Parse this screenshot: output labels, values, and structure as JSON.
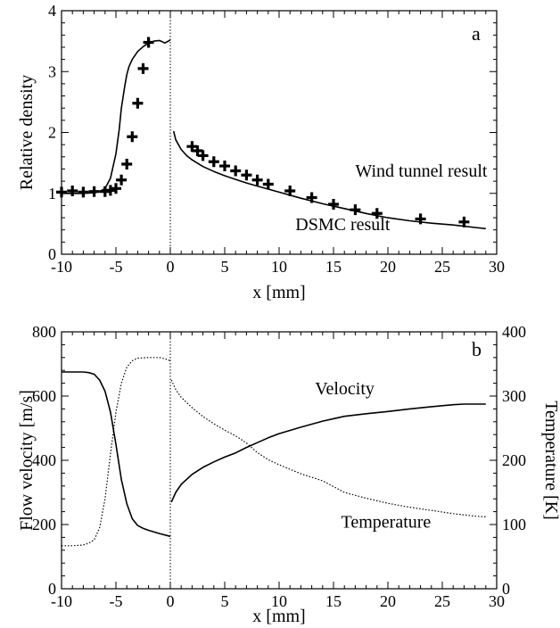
{
  "chart_data": [
    {
      "panel": "a",
      "type": "line",
      "xlabel": "x [mm]",
      "ylabel": "Relative density",
      "xlim": [
        -10,
        30
      ],
      "ylim": [
        0,
        4
      ],
      "xticks": [
        -10,
        -5,
        0,
        5,
        10,
        15,
        20,
        25,
        30
      ],
      "yticks": [
        0,
        1,
        2,
        3,
        4
      ],
      "grid": false,
      "reference_line_x": 0,
      "annotations": [
        {
          "text": "a",
          "x": 27.7,
          "y": 3.62
        },
        {
          "text": "Wind tunnel result",
          "x": 17.0,
          "y": 1.38
        },
        {
          "text": "DSMC result",
          "x": 11.5,
          "y": 0.5
        }
      ],
      "series": [
        {
          "name": "DSMC result",
          "style": "solid-line",
          "segments": [
            {
              "x": [
                -10,
                -9,
                -8,
                -7,
                -6.5,
                -6,
                -5.5,
                -5,
                -4.7,
                -4.5,
                -4.2,
                -4,
                -3.8,
                -3.5,
                -3,
                -2.5,
                -2,
                -1.5,
                -1,
                -0.5,
                0
              ],
              "y": [
                1.0,
                1.0,
                1.0,
                1.01,
                1.03,
                1.08,
                1.25,
                1.65,
                2.05,
                2.4,
                2.75,
                2.95,
                3.08,
                3.2,
                3.33,
                3.41,
                3.47,
                3.5,
                3.51,
                3.47,
                3.52
              ]
            },
            {
              "x": [
                0.3,
                0.5,
                1,
                1.5,
                2,
                3,
                4,
                5,
                6,
                7,
                8,
                9,
                10,
                12,
                14,
                16,
                18,
                20,
                22,
                24,
                26,
                28,
                29
              ],
              "y": [
                2.02,
                1.88,
                1.72,
                1.62,
                1.55,
                1.44,
                1.36,
                1.29,
                1.23,
                1.17,
                1.12,
                1.07,
                1.02,
                0.92,
                0.83,
                0.75,
                0.67,
                0.6,
                0.55,
                0.51,
                0.48,
                0.44,
                0.42
              ]
            }
          ]
        },
        {
          "name": "Wind tunnel result",
          "style": "plus-markers",
          "x": [
            -10,
            -9,
            -8,
            -7,
            -6,
            -5.5,
            -5,
            -4.5,
            -4,
            -3.5,
            -3,
            -2.5,
            -2,
            2,
            2.5,
            3,
            4,
            5,
            6,
            7,
            8,
            9,
            11,
            13,
            15,
            17,
            19,
            23,
            27
          ],
          "y": [
            1.02,
            1.04,
            1.02,
            1.03,
            1.03,
            1.05,
            1.08,
            1.22,
            1.48,
            1.93,
            2.48,
            3.05,
            3.48,
            1.77,
            1.7,
            1.62,
            1.52,
            1.45,
            1.37,
            1.3,
            1.22,
            1.15,
            1.04,
            0.93,
            0.82,
            0.73,
            0.67,
            0.58,
            0.53
          ]
        }
      ]
    },
    {
      "panel": "b",
      "type": "line",
      "xlabel": "x [mm]",
      "ylabel": "Flow velocity  [m/s]",
      "y2label": "Temperature  [K]",
      "xlim": [
        -10,
        30
      ],
      "ylim": [
        0,
        800
      ],
      "y2lim": [
        0,
        400
      ],
      "xticks": [
        -10,
        -5,
        0,
        5,
        10,
        15,
        20,
        25,
        30
      ],
      "yticks": [
        0,
        200,
        400,
        600,
        800
      ],
      "y2ticks": [
        0,
        100,
        200,
        300,
        400
      ],
      "grid": false,
      "reference_line_x": 0,
      "annotations": [
        {
          "text": "b",
          "x": 27.7,
          "y": 745
        },
        {
          "text": "Velocity",
          "x": 13.3,
          "y": 625
        },
        {
          "text": "Temperature",
          "x": 15.7,
          "y": 210
        }
      ],
      "series": [
        {
          "name": "Velocity",
          "axis": "left",
          "style": "solid-line",
          "segments": [
            {
              "x": [
                -10,
                -9,
                -8,
                -7.5,
                -7,
                -6.5,
                -6,
                -5.5,
                -5,
                -4.5,
                -4,
                -3.5,
                -3,
                -2.5,
                -2,
                -1,
                0
              ],
              "y": [
                675,
                675,
                675,
                673,
                668,
                650,
                615,
                550,
                450,
                340,
                265,
                218,
                197,
                188,
                182,
                172,
                163
              ]
            },
            {
              "x": [
                0.1,
                0.5,
                1,
                2,
                3,
                4,
                5,
                6,
                7,
                8,
                9,
                10,
                12,
                14,
                16,
                18,
                20,
                22,
                24,
                26,
                27,
                29
              ],
              "y": [
                270,
                300,
                325,
                356,
                378,
                395,
                410,
                423,
                440,
                455,
                470,
                483,
                503,
                522,
                537,
                545,
                552,
                560,
                567,
                573,
                575,
                575
              ]
            }
          ]
        },
        {
          "name": "Temperature",
          "axis": "right",
          "style": "dotted-line",
          "segments": [
            {
              "x": [
                -10,
                -9,
                -8,
                -7.5,
                -7,
                -6.5,
                -6,
                -5.5,
                -5,
                -4.5,
                -4,
                -3.5,
                -3,
                -2,
                -1,
                -0.5,
                0
              ],
              "y": [
                67,
                67,
                68,
                71,
                76,
                95,
                140,
                210,
                275,
                320,
                345,
                355,
                359,
                360,
                360,
                358,
                355
              ]
            },
            {
              "x": [
                0.1,
                0.5,
                1,
                2,
                3,
                4,
                5,
                6,
                7,
                8,
                9,
                10,
                12,
                14,
                16,
                18,
                20,
                22,
                24,
                26,
                28,
                29
              ],
              "y": [
                325,
                310,
                298,
                282,
                268,
                257,
                247,
                238,
                227,
                212,
                201,
                193,
                179,
                168,
                150,
                141,
                133,
                127,
                122,
                117,
                113,
                112
              ]
            }
          ]
        }
      ]
    }
  ]
}
